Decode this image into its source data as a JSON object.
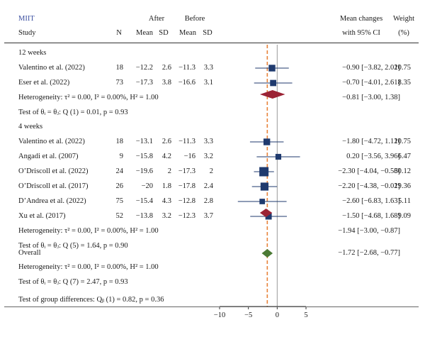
{
  "header": {
    "title": "MIIT",
    "study": "Study",
    "n": "N",
    "after": "After",
    "before": "Before",
    "mean": "Mean",
    "sd": "SD",
    "mean_changes_line1": "Mean changes",
    "mean_changes_line2": "with 95% CI",
    "weight_line1": "Weight",
    "weight_line2": "(%)"
  },
  "colors": {
    "title": "#3b4fa0",
    "marker": "#1f3a6e",
    "subgroup_diamond": "#9b2335",
    "overall_diamond": "#4b7a35",
    "null_line": "#999999",
    "pooled_line": "#e8823a"
  },
  "groups": [
    {
      "label": "12 weeks",
      "studies": [
        {
          "study": "Valentino et al. (2022)",
          "n": "18",
          "after_mean": "−12.2",
          "after_sd": "2.6",
          "before_mean": "−11.3",
          "before_sd": "3.3",
          "ci_text": "−0.90 [−3.82, 2.02]",
          "weight": "10.75"
        },
        {
          "study": "Eser et al. (2022)",
          "n": "73",
          "after_mean": "−17.3",
          "after_sd": "3.8",
          "before_mean": "−16.6",
          "before_sd": "3.1",
          "ci_text": "−0.70 [−4.01, 2.61]",
          "weight": "8.35"
        }
      ],
      "heterogeneity": "Heterogeneity: τ² = 0.00, I² = 0.00%, H² = 1.00",
      "pooled_text": "−0.81 [−3.00, 1.38]",
      "test_value": "Test of θᵢ = θⱼ: Q (1) = 0.01, p = 0.93"
    },
    {
      "label": "4 weeks",
      "studies": [
        {
          "study": "Valentino et al. (2022)",
          "n": "18",
          "after_mean": "−13.1",
          "after_sd": "2.6",
          "before_mean": "−11.3",
          "before_sd": "3.3",
          "ci_text": "−1.80 [−4.72, 1.12]",
          "weight": "10.75"
        },
        {
          "study": "Angadi et al. (2007)",
          "n": "9",
          "after_mean": "−15.8",
          "after_sd": "4.2",
          "before_mean": "−16",
          "before_sd": "3.2",
          "ci_text": "0.20 [−3.56, 3.96]",
          "weight": "6.47"
        },
        {
          "study": "O’Driscoll et al. (2022)",
          "n": "24",
          "after_mean": "−19.6",
          "after_sd": "2",
          "before_mean": "−17.3",
          "before_sd": "2",
          "ci_text": "−2.30 [−4.04, −0.56]",
          "weight": "30.12"
        },
        {
          "study": "O’Driscoll et al. (2017)",
          "n": "26",
          "after_mean": "−20",
          "after_sd": "1.8",
          "before_mean": "−17.8",
          "before_sd": "2.4",
          "ci_text": "−2.20 [−4.38, −0.02]",
          "weight": "19.36"
        },
        {
          "study": "D’Andrea et al. (2022)",
          "n": "75",
          "after_mean": "−15.4",
          "after_sd": "4.3",
          "before_mean": "−12.8",
          "before_sd": "2.8",
          "ci_text": "−2.60 [−6.83, 1.63]",
          "weight": "5.11"
        },
        {
          "study": "Xu et al. (2017)",
          "n": "52",
          "after_mean": "−13.8",
          "after_sd": "3.2",
          "before_mean": "−12.3",
          "before_sd": "3.7",
          "ci_text": "−1.50 [−4.68, 1.68]",
          "weight": "9.09"
        }
      ],
      "heterogeneity": "Heterogeneity: τ² = 0.00, I² = 0.00%, H² = 1.00",
      "pooled_text": "−1.94 [−3.00, −0.87]",
      "test_value": "Test of θᵢ = θⱼ: Q (5) = 1.64, p = 0.90"
    }
  ],
  "overall": {
    "label": "Overall",
    "heterogeneity": "Heterogeneity: τ² = 0.00, I² = 0.00%, H² = 1.00",
    "pooled_text": "−1.72 [−2.68, −0.77]",
    "test_value": "Test of θᵢ = θⱼ: Q (7) = 2.47, p = 0.93"
  },
  "group_differences": "Test of group differences: Qᵦ (1) = 0.82, p = 0.36",
  "chart_data": {
    "type": "forest",
    "xlim": [
      -10,
      5
    ],
    "xticks": [
      -10,
      -5,
      0,
      5
    ],
    "null_value": 0,
    "overall_pooled": -1.72,
    "grid": false,
    "studies": [
      {
        "group": "12 weeks",
        "name": "Valentino et al. (2022)",
        "estimate": -0.9,
        "ci_low": -3.82,
        "ci_high": 2.02,
        "weight": 10.75
      },
      {
        "group": "12 weeks",
        "name": "Eser et al. (2022)",
        "estimate": -0.7,
        "ci_low": -4.01,
        "ci_high": 2.61,
        "weight": 8.35
      },
      {
        "group": "4 weeks",
        "name": "Valentino et al. (2022)",
        "estimate": -1.8,
        "ci_low": -4.72,
        "ci_high": 1.12,
        "weight": 10.75
      },
      {
        "group": "4 weeks",
        "name": "Angadi et al. (2007)",
        "estimate": 0.2,
        "ci_low": -3.56,
        "ci_high": 3.96,
        "weight": 6.47
      },
      {
        "group": "4 weeks",
        "name": "O’Driscoll et al. (2022)",
        "estimate": -2.3,
        "ci_low": -4.04,
        "ci_high": -0.56,
        "weight": 30.12
      },
      {
        "group": "4 weeks",
        "name": "O’Driscoll et al. (2017)",
        "estimate": -2.2,
        "ci_low": -4.38,
        "ci_high": -0.02,
        "weight": 19.36
      },
      {
        "group": "4 weeks",
        "name": "D’Andrea et al. (2022)",
        "estimate": -2.6,
        "ci_low": -6.83,
        "ci_high": 1.63,
        "weight": 5.11
      },
      {
        "group": "4 weeks",
        "name": "Xu et al. (2017)",
        "estimate": -1.5,
        "ci_low": -4.68,
        "ci_high": 1.68,
        "weight": 9.09
      }
    ],
    "pooled": [
      {
        "group": "12 weeks",
        "estimate": -0.81,
        "ci_low": -3.0,
        "ci_high": 1.38
      },
      {
        "group": "4 weeks",
        "estimate": -1.94,
        "ci_low": -3.0,
        "ci_high": -0.87
      },
      {
        "group": "Overall",
        "estimate": -1.72,
        "ci_low": -2.68,
        "ci_high": -0.77
      }
    ]
  }
}
